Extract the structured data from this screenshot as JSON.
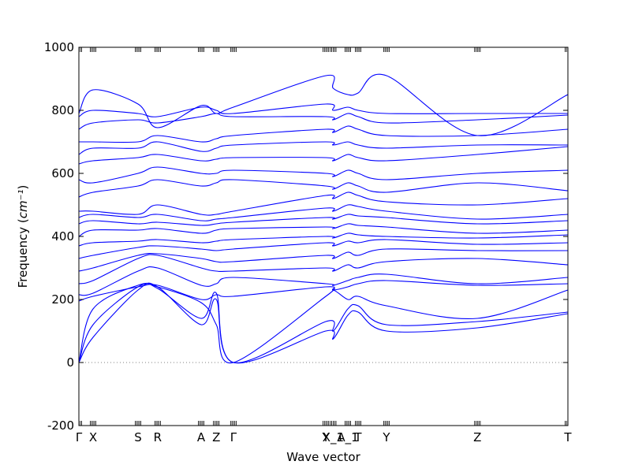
{
  "chart_data": {
    "type": "line",
    "title": "",
    "xlabel": "Wave vector",
    "ylabel": "Frequency",
    "ylabel_unit": "cm⁻¹",
    "ylim": [
      -200,
      1000
    ],
    "yticks": [
      -200,
      0,
      200,
      400,
      600,
      800,
      1000
    ],
    "x_range": [
      0.0,
      1.0
    ],
    "zero_line": true,
    "grid": false,
    "legend": "none",
    "line_color": "#0000ff",
    "high_symmetry_points": [
      {
        "label": "Γ",
        "x": 0.0
      },
      {
        "label": "X",
        "x": 0.029
      },
      {
        "label": "S",
        "x": 0.121
      },
      {
        "label": "R",
        "x": 0.161
      },
      {
        "label": "A",
        "x": 0.25
      },
      {
        "label": "Z",
        "x": 0.281
      },
      {
        "label": "Γ",
        "x": 0.316
      },
      {
        "label": "Y",
        "x": 0.505
      },
      {
        "label": "X_1",
        "x": 0.52
      },
      {
        "label": "A_1",
        "x": 0.55
      },
      {
        "label": "T",
        "x": 0.571
      },
      {
        "label": "Y",
        "x": 0.629
      },
      {
        "label": "Z",
        "x": 0.815
      },
      {
        "label": "T",
        "x": 1.0
      }
    ],
    "series": [
      {
        "x": [
          0.0,
          0.029,
          0.121,
          0.161,
          0.25,
          0.281,
          0.316,
          0.505,
          0.52,
          0.55,
          0.571,
          0.629,
          0.815,
          1.0
        ],
        "y": [
          0,
          80,
          230,
          240,
          120,
          200,
          0,
          100,
          75,
          150,
          160,
          100,
          110,
          155
        ]
      },
      {
        "x": [
          0.0,
          0.029,
          0.121,
          0.161,
          0.25,
          0.281,
          0.316,
          0.505,
          0.52,
          0.55,
          0.571,
          0.629,
          0.815,
          1.0
        ],
        "y": [
          0,
          120,
          240,
          235,
          140,
          220,
          0,
          130,
          100,
          170,
          180,
          120,
          130,
          160
        ]
      },
      {
        "x": [
          0.0,
          0.029,
          0.121,
          0.161,
          0.25,
          0.281,
          0.316,
          0.505,
          0.52,
          0.55,
          0.571,
          0.629,
          0.815,
          1.0
        ],
        "y": [
          0,
          170,
          245,
          240,
          190,
          120,
          0,
          210,
          230,
          200,
          210,
          180,
          140,
          230
        ]
      },
      {
        "x": [
          0.0,
          0.029,
          0.121,
          0.161,
          0.25,
          0.281,
          0.316,
          0.505,
          0.52,
          0.55,
          0.571,
          0.629,
          0.815,
          1.0
        ],
        "y": [
          195,
          210,
          240,
          245,
          200,
          215,
          210,
          240,
          230,
          240,
          250,
          260,
          245,
          250
        ]
      },
      {
        "x": [
          0.0,
          0.029,
          0.121,
          0.161,
          0.25,
          0.281,
          0.316,
          0.505,
          0.52,
          0.55,
          0.571,
          0.629,
          0.815,
          1.0
        ],
        "y": [
          215,
          220,
          290,
          300,
          245,
          250,
          270,
          250,
          245,
          260,
          270,
          280,
          250,
          270
        ]
      },
      {
        "x": [
          0.0,
          0.029,
          0.121,
          0.161,
          0.25,
          0.281,
          0.316,
          0.505,
          0.52,
          0.55,
          0.571,
          0.629,
          0.815,
          1.0
        ],
        "y": [
          250,
          260,
          330,
          340,
          300,
          290,
          290,
          300,
          290,
          310,
          300,
          320,
          330,
          310
        ]
      },
      {
        "x": [
          0.0,
          0.029,
          0.121,
          0.161,
          0.25,
          0.281,
          0.316,
          0.505,
          0.52,
          0.55,
          0.571,
          0.629,
          0.815,
          1.0
        ],
        "y": [
          290,
          300,
          340,
          345,
          330,
          320,
          320,
          340,
          330,
          350,
          340,
          360,
          355,
          355
        ]
      },
      {
        "x": [
          0.0,
          0.029,
          0.121,
          0.161,
          0.25,
          0.281,
          0.316,
          0.505,
          0.52,
          0.55,
          0.571,
          0.629,
          0.815,
          1.0
        ],
        "y": [
          330,
          340,
          365,
          370,
          360,
          355,
          360,
          380,
          370,
          385,
          380,
          390,
          375,
          380
        ]
      },
      {
        "x": [
          0.0,
          0.029,
          0.121,
          0.161,
          0.25,
          0.281,
          0.316,
          0.505,
          0.52,
          0.55,
          0.571,
          0.629,
          0.815,
          1.0
        ],
        "y": [
          370,
          380,
          385,
          390,
          380,
          385,
          390,
          400,
          395,
          410,
          405,
          400,
          395,
          405
        ]
      },
      {
        "x": [
          0.0,
          0.029,
          0.121,
          0.161,
          0.25,
          0.281,
          0.316,
          0.505,
          0.52,
          0.55,
          0.571,
          0.629,
          0.815,
          1.0
        ],
        "y": [
          400,
          420,
          420,
          425,
          410,
          420,
          425,
          430,
          425,
          440,
          435,
          430,
          410,
          420
        ]
      },
      {
        "x": [
          0.0,
          0.029,
          0.121,
          0.161,
          0.25,
          0.281,
          0.316,
          0.505,
          0.52,
          0.55,
          0.571,
          0.629,
          0.815,
          1.0
        ],
        "y": [
          440,
          450,
          440,
          445,
          435,
          440,
          445,
          460,
          455,
          470,
          465,
          460,
          440,
          450
        ]
      },
      {
        "x": [
          0.0,
          0.029,
          0.121,
          0.161,
          0.25,
          0.281,
          0.316,
          0.505,
          0.52,
          0.55,
          0.571,
          0.629,
          0.815,
          1.0
        ],
        "y": [
          460,
          470,
          460,
          470,
          450,
          455,
          460,
          490,
          480,
          500,
          495,
          480,
          455,
          470
        ]
      },
      {
        "x": [
          0.0,
          0.029,
          0.121,
          0.161,
          0.25,
          0.281,
          0.316,
          0.505,
          0.52,
          0.55,
          0.571,
          0.629,
          0.815,
          1.0
        ],
        "y": [
          480,
          480,
          470,
          500,
          470,
          470,
          480,
          530,
          520,
          540,
          530,
          510,
          500,
          520
        ]
      },
      {
        "x": [
          0.0,
          0.029,
          0.121,
          0.161,
          0.25,
          0.281,
          0.316,
          0.505,
          0.52,
          0.55,
          0.571,
          0.629,
          0.815,
          1.0
        ],
        "y": [
          525,
          540,
          560,
          580,
          560,
          570,
          580,
          560,
          550,
          570,
          560,
          540,
          570,
          545
        ]
      },
      {
        "x": [
          0.0,
          0.029,
          0.121,
          0.161,
          0.25,
          0.281,
          0.316,
          0.505,
          0.52,
          0.55,
          0.571,
          0.629,
          0.815,
          1.0
        ],
        "y": [
          580,
          570,
          600,
          620,
          600,
          600,
          610,
          600,
          590,
          610,
          600,
          580,
          600,
          610
        ]
      },
      {
        "x": [
          0.0,
          0.029,
          0.121,
          0.161,
          0.25,
          0.281,
          0.316,
          0.505,
          0.52,
          0.55,
          0.571,
          0.629,
          0.815,
          1.0
        ],
        "y": [
          630,
          640,
          650,
          660,
          640,
          645,
          650,
          650,
          640,
          660,
          650,
          640,
          660,
          685
        ]
      },
      {
        "x": [
          0.0,
          0.029,
          0.121,
          0.161,
          0.25,
          0.281,
          0.316,
          0.505,
          0.52,
          0.55,
          0.571,
          0.629,
          0.815,
          1.0
        ],
        "y": [
          660,
          680,
          680,
          700,
          670,
          680,
          690,
          700,
          690,
          700,
          690,
          680,
          690,
          690
        ]
      },
      {
        "x": [
          0.0,
          0.029,
          0.121,
          0.161,
          0.25,
          0.281,
          0.316,
          0.505,
          0.52,
          0.55,
          0.571,
          0.629,
          0.815,
          1.0
        ],
        "y": [
          700,
          700,
          700,
          720,
          700,
          710,
          720,
          740,
          730,
          750,
          740,
          720,
          720,
          740
        ]
      },
      {
        "x": [
          0.0,
          0.029,
          0.121,
          0.161,
          0.25,
          0.281,
          0.316,
          0.505,
          0.52,
          0.55,
          0.571,
          0.629,
          0.815,
          1.0
        ],
        "y": [
          740,
          760,
          770,
          760,
          780,
          790,
          780,
          780,
          770,
          790,
          780,
          760,
          770,
          785
        ]
      },
      {
        "x": [
          0.0,
          0.029,
          0.121,
          0.161,
          0.25,
          0.281,
          0.316,
          0.505,
          0.52,
          0.55,
          0.571,
          0.629,
          0.815,
          1.0
        ],
        "y": [
          780,
          800,
          790,
          780,
          810,
          800,
          790,
          820,
          800,
          810,
          800,
          790,
          790,
          790
        ]
      },
      {
        "x": [
          0.0,
          0.029,
          0.121,
          0.161,
          0.25,
          0.281,
          0.316,
          0.505,
          0.52,
          0.55,
          0.571,
          0.629,
          0.815,
          1.0
        ],
        "y": [
          790,
          865,
          820,
          745,
          815,
          790,
          810,
          910,
          870,
          850,
          855,
          910,
          720,
          850
        ]
      }
    ]
  }
}
